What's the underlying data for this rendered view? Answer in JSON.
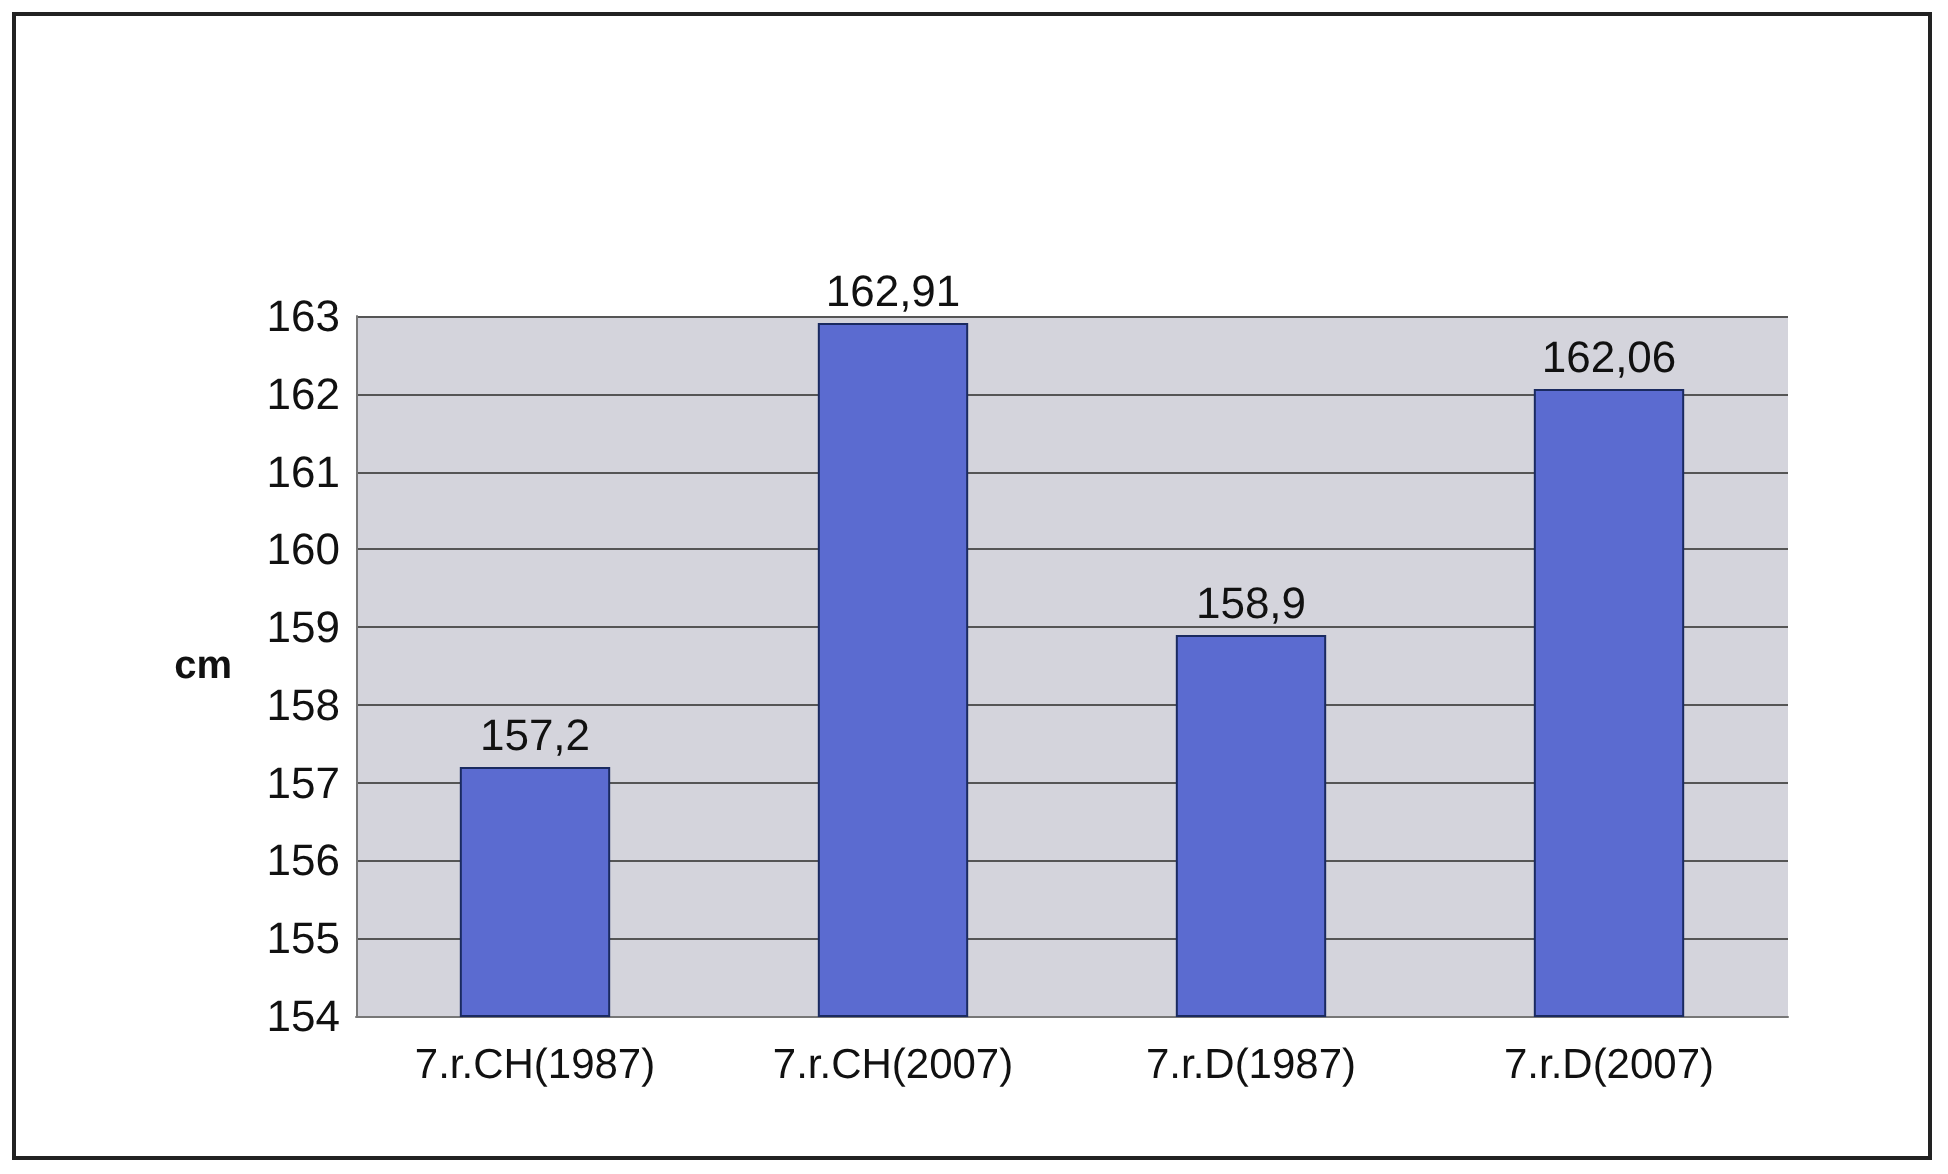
{
  "chart_data": {
    "type": "bar",
    "ylabel": "cm",
    "categories": [
      "7.r.CH(1987)",
      "7.r.CH(2007)",
      "7.r.D(1987)",
      "7.r.D(2007)"
    ],
    "values": [
      157.2,
      162.91,
      158.9,
      162.06
    ],
    "value_labels": [
      "157,2",
      "162,91",
      "158,9",
      "162,06"
    ],
    "color": "#5b6bd0",
    "ylim": [
      154,
      163
    ],
    "yticks": [
      154,
      155,
      156,
      157,
      158,
      159,
      160,
      161,
      162,
      163
    ],
    "grid": "y"
  }
}
